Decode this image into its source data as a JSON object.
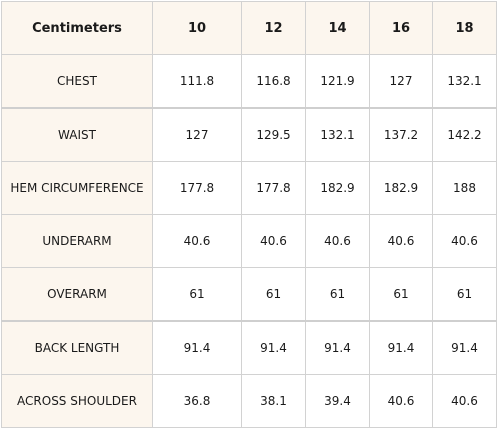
{
  "table": {
    "corner_header": "Centimeters",
    "sizes": [
      "10",
      "12",
      "14",
      "16",
      "18"
    ],
    "rows": [
      {
        "label": "CHEST",
        "values": [
          "111.8",
          "116.8",
          "121.9",
          "127",
          "132.1"
        ]
      },
      {
        "label": "WAIST",
        "values": [
          "127",
          "129.5",
          "132.1",
          "137.2",
          "142.2"
        ]
      },
      {
        "label": "HEM CIRCUMFERENCE",
        "values": [
          "177.8",
          "177.8",
          "182.9",
          "182.9",
          "188"
        ]
      },
      {
        "label": "UNDERARM",
        "values": [
          "40.6",
          "40.6",
          "40.6",
          "40.6",
          "40.6"
        ]
      },
      {
        "label": "OVERARM",
        "values": [
          "61",
          "61",
          "61",
          "61",
          "61"
        ]
      },
      {
        "label": "BACK LENGTH",
        "values": [
          "91.4",
          "91.4",
          "91.4",
          "91.4",
          "91.4"
        ]
      },
      {
        "label": "ACROSS SHOULDER",
        "values": [
          "36.8",
          "38.1",
          "39.4",
          "40.6",
          "40.6"
        ]
      }
    ]
  },
  "colors": {
    "header_background": "#fcf6ee",
    "cell_background": "#ffffff",
    "border": "#d2d2d2",
    "text": "#1a1a1a"
  }
}
